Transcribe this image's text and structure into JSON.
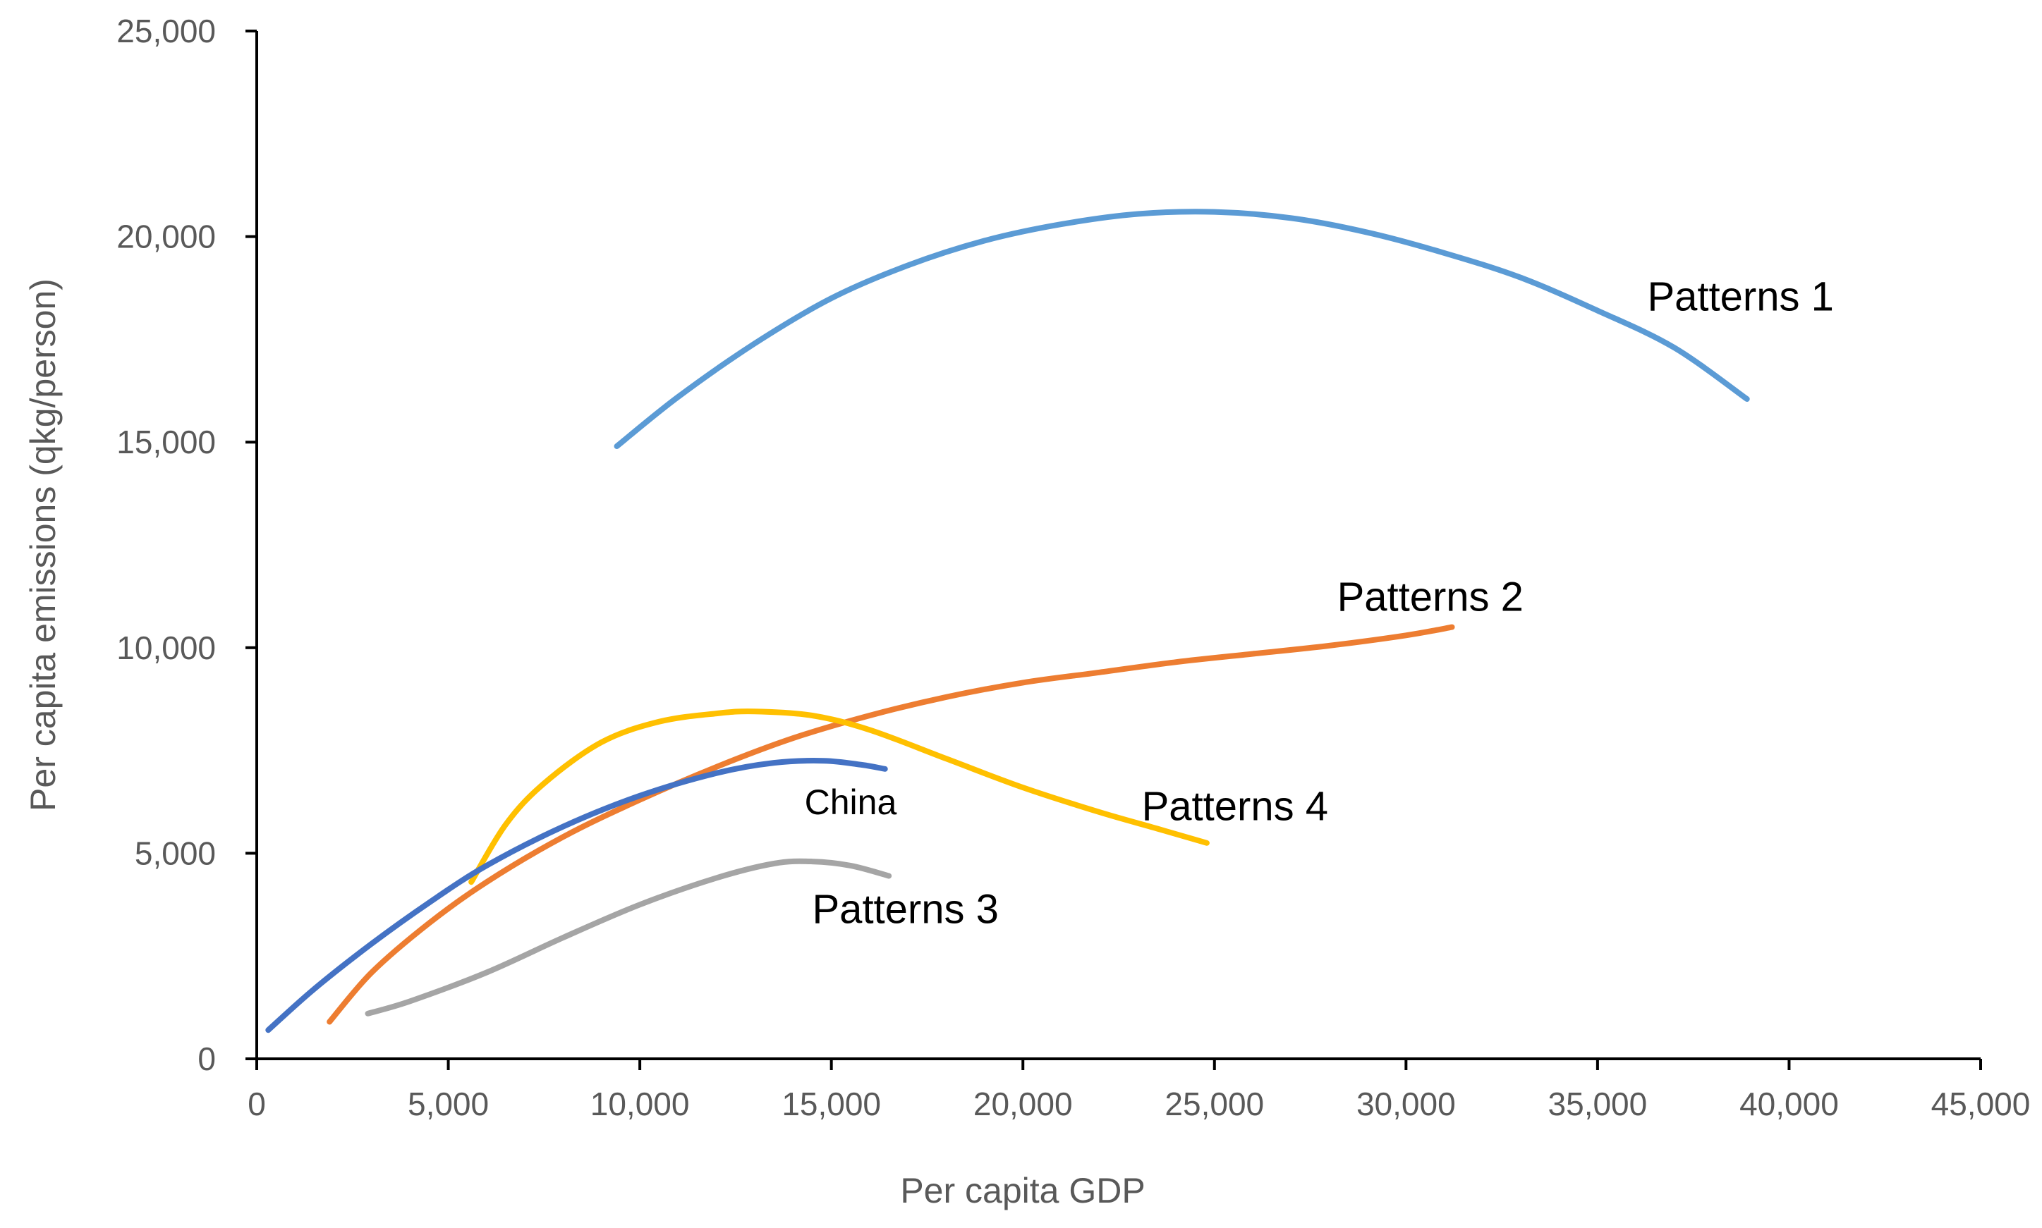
{
  "chart_data": {
    "type": "line",
    "title": "",
    "xlabel": "Per capita GDP",
    "ylabel": "Per capita emissions (qkg/person)",
    "xlim": [
      0,
      45000
    ],
    "ylim": [
      0,
      25000
    ],
    "x_ticks": [
      0,
      5000,
      10000,
      15000,
      20000,
      25000,
      30000,
      35000,
      40000,
      45000
    ],
    "x_tick_labels": [
      "0",
      "5,000",
      "10,000",
      "15,000",
      "20,000",
      "25,000",
      "30,000",
      "35,000",
      "40,000",
      "45,000"
    ],
    "y_ticks": [
      0,
      5000,
      10000,
      15000,
      20000,
      25000
    ],
    "y_tick_labels": [
      "0",
      "5,000",
      "10,000",
      "15,000",
      "20,000",
      "25,000"
    ],
    "grid": false,
    "legend": "none",
    "series": [
      {
        "name": "Patterns 1",
        "color": "#5B9BD5",
        "label_anchor": [
          36300,
          18200
        ],
        "points": [
          [
            9400,
            14900
          ],
          [
            11000,
            16100
          ],
          [
            13000,
            17400
          ],
          [
            15000,
            18500
          ],
          [
            17000,
            19300
          ],
          [
            19000,
            19900
          ],
          [
            21000,
            20300
          ],
          [
            23000,
            20550
          ],
          [
            25000,
            20600
          ],
          [
            27000,
            20450
          ],
          [
            29000,
            20100
          ],
          [
            31000,
            19600
          ],
          [
            33000,
            19000
          ],
          [
            35000,
            18200
          ],
          [
            37000,
            17300
          ],
          [
            38900,
            16050
          ]
        ]
      },
      {
        "name": "Patterns 2",
        "color": "#ED7D31",
        "label_anchor": [
          28200,
          10900
        ],
        "points": [
          [
            1900,
            900
          ],
          [
            3000,
            2100
          ],
          [
            4500,
            3300
          ],
          [
            6000,
            4300
          ],
          [
            8000,
            5400
          ],
          [
            10000,
            6300
          ],
          [
            12000,
            7100
          ],
          [
            14000,
            7800
          ],
          [
            16000,
            8350
          ],
          [
            18000,
            8800
          ],
          [
            20000,
            9150
          ],
          [
            22000,
            9400
          ],
          [
            24000,
            9650
          ],
          [
            26000,
            9850
          ],
          [
            28000,
            10050
          ],
          [
            30000,
            10300
          ],
          [
            31200,
            10500
          ]
        ]
      },
      {
        "name": "Patterns 3",
        "color": "#A5A5A5",
        "label_anchor": [
          14500,
          3300
        ],
        "points": [
          [
            2900,
            1100
          ],
          [
            4000,
            1400
          ],
          [
            6000,
            2100
          ],
          [
            8000,
            2950
          ],
          [
            10000,
            3750
          ],
          [
            12000,
            4400
          ],
          [
            13500,
            4750
          ],
          [
            14500,
            4800
          ],
          [
            15500,
            4700
          ],
          [
            16500,
            4450
          ]
        ]
      },
      {
        "name": "Patterns 4",
        "color": "#FFC000",
        "label_anchor": [
          23100,
          5800
        ],
        "points": [
          [
            5600,
            4300
          ],
          [
            6500,
            5700
          ],
          [
            7500,
            6700
          ],
          [
            9000,
            7700
          ],
          [
            10500,
            8200
          ],
          [
            12000,
            8400
          ],
          [
            13000,
            8450
          ],
          [
            14500,
            8350
          ],
          [
            16000,
            8000
          ],
          [
            18000,
            7300
          ],
          [
            20000,
            6600
          ],
          [
            22000,
            6000
          ],
          [
            23500,
            5600
          ],
          [
            24800,
            5250
          ]
        ]
      },
      {
        "name": "China",
        "color": "#4472C4",
        "label_anchor": [
          14300,
          5950
        ],
        "points": [
          [
            300,
            700
          ],
          [
            1500,
            1700
          ],
          [
            3000,
            2800
          ],
          [
            4500,
            3800
          ],
          [
            6000,
            4700
          ],
          [
            8000,
            5650
          ],
          [
            10000,
            6400
          ],
          [
            12000,
            6950
          ],
          [
            13500,
            7200
          ],
          [
            14800,
            7250
          ],
          [
            15800,
            7150
          ],
          [
            16400,
            7050
          ]
        ]
      }
    ]
  }
}
